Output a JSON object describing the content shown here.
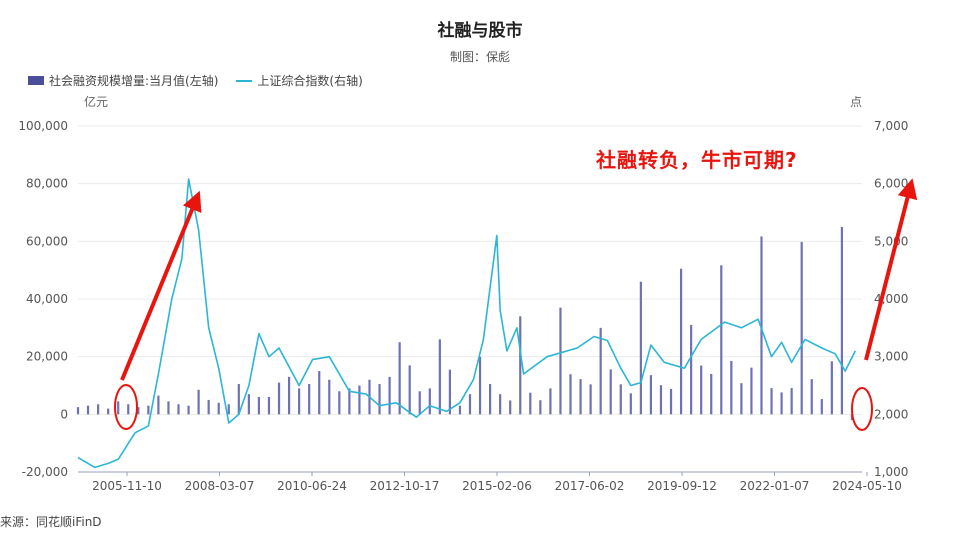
{
  "chart_data": {
    "type": "bar+line",
    "title": "社融与股市",
    "subtitle": "制图：保彪",
    "legend": [
      {
        "name": "社会融资规模增量:当月值(左轴)",
        "kind": "bar",
        "color": "#4B4F9A"
      },
      {
        "name": "上证综合指数(右轴)",
        "kind": "line",
        "color": "#2BB6D6"
      }
    ],
    "legend_position": "top-left",
    "grid": true,
    "y_left": {
      "unit": "亿元",
      "ticks": [
        "100,000",
        "80,000",
        "60,000",
        "40,000",
        "20,000",
        "0",
        "-20,000"
      ],
      "range": [
        -20000,
        100000
      ]
    },
    "y_right": {
      "unit": "点",
      "ticks": [
        "7,000",
        "6,000",
        "5,000",
        "4,000",
        "3,000",
        "2,000",
        "1,000"
      ],
      "range": [
        1000,
        7000
      ]
    },
    "x_tick_labels": [
      "2005-11-10",
      "2008-03-07",
      "2010-06-24",
      "2012-10-17",
      "2015-02-06",
      "2017-06-02",
      "2019-09-12",
      "2022-01-07",
      "2024-05-10"
    ],
    "x_range": [
      "2005-01",
      "2024-06"
    ],
    "bars": {
      "name": "社会融资规模增量:当月值(左轴)",
      "x": [
        "2005-01",
        "2005-04",
        "2005-07",
        "2005-10",
        "2006-01",
        "2006-04",
        "2006-07",
        "2006-10",
        "2007-01",
        "2007-04",
        "2007-07",
        "2007-10",
        "2008-01",
        "2008-04",
        "2008-07",
        "2008-10",
        "2009-01",
        "2009-04",
        "2009-07",
        "2009-10",
        "2010-01",
        "2010-04",
        "2010-07",
        "2010-10",
        "2011-01",
        "2011-04",
        "2011-07",
        "2011-10",
        "2012-01",
        "2012-04",
        "2012-07",
        "2012-10",
        "2013-01",
        "2013-04",
        "2013-07",
        "2013-10",
        "2014-01",
        "2014-04",
        "2014-07",
        "2014-10",
        "2015-01",
        "2015-04",
        "2015-07",
        "2015-10",
        "2016-01",
        "2016-04",
        "2016-07",
        "2016-10",
        "2017-01",
        "2017-04",
        "2017-07",
        "2017-10",
        "2018-01",
        "2018-04",
        "2018-07",
        "2018-10",
        "2019-01",
        "2019-04",
        "2019-07",
        "2019-10",
        "2020-01",
        "2020-04",
        "2020-07",
        "2020-10",
        "2021-01",
        "2021-04",
        "2021-07",
        "2021-10",
        "2022-01",
        "2022-04",
        "2022-07",
        "2022-10",
        "2023-01",
        "2023-04",
        "2023-07",
        "2023-10",
        "2024-01",
        "2024-04"
      ],
      "values": [
        2500,
        3000,
        3500,
        2000,
        4500,
        3500,
        2500,
        3000,
        6500,
        4500,
        3500,
        3000,
        8500,
        5000,
        4000,
        3500,
        10500,
        7000,
        6000,
        6000,
        11000,
        13000,
        9000,
        10500,
        15000,
        12000,
        8000,
        9000,
        10000,
        12000,
        10500,
        13000,
        25000,
        17000,
        8000,
        9000,
        26000,
        15500,
        3000,
        7000,
        20000,
        10500,
        7000,
        4800,
        34000,
        7500,
        4900,
        9000,
        37000,
        13900,
        12200,
        10400,
        30000,
        15600,
        10400,
        7300,
        46000,
        13600,
        10100,
        8800,
        50500,
        31000,
        16900,
        14000,
        51700,
        18500,
        10800,
        16200,
        61700,
        9100,
        7600,
        9100,
        59800,
        12200,
        5300,
        18400,
        65000,
        -2000
      ]
    },
    "line": {
      "name": "上证综合指数(右轴)",
      "x": [
        "2005-01",
        "2005-06",
        "2005-10",
        "2006-01",
        "2006-06",
        "2006-10",
        "2007-01",
        "2007-05",
        "2007-08",
        "2007-10",
        "2008-01",
        "2008-04",
        "2008-07",
        "2008-10",
        "2009-01",
        "2009-04",
        "2009-07",
        "2009-10",
        "2010-01",
        "2010-07",
        "2010-11",
        "2011-04",
        "2011-10",
        "2012-03",
        "2012-07",
        "2012-12",
        "2013-06",
        "2013-10",
        "2014-03",
        "2014-07",
        "2014-11",
        "2015-02",
        "2015-04",
        "2015-06",
        "2015-07",
        "2015-09",
        "2015-12",
        "2016-02",
        "2016-09",
        "2017-06",
        "2017-11",
        "2018-03",
        "2018-07",
        "2018-10",
        "2019-01",
        "2019-04",
        "2019-08",
        "2020-02",
        "2020-07",
        "2021-02",
        "2021-07",
        "2021-12",
        "2022-04",
        "2022-07",
        "2022-10",
        "2023-02",
        "2023-07",
        "2023-11",
        "2024-02",
        "2024-05"
      ],
      "values": [
        1250,
        1080,
        1150,
        1220,
        1680,
        1800,
        2700,
        4000,
        4700,
        6080,
        5200,
        3500,
        2800,
        1850,
        2000,
        2500,
        3400,
        3000,
        3150,
        2500,
        2950,
        3000,
        2400,
        2350,
        2150,
        2200,
        1950,
        2150,
        2050,
        2200,
        2600,
        3300,
        4200,
        5100,
        3800,
        3100,
        3500,
        2700,
        3000,
        3150,
        3350,
        3280,
        2800,
        2500,
        2550,
        3200,
        2900,
        2800,
        3300,
        3600,
        3500,
        3650,
        3000,
        3250,
        2900,
        3300,
        3150,
        3050,
        2750,
        3100
      ]
    },
    "annotations": [
      {
        "text": "社融转负，牛市可期?",
        "color": "#E8150E"
      }
    ],
    "source": "来源：同花顺iFinD"
  },
  "ui": {
    "title": "社融与股市",
    "subtitle": "制图：保彪",
    "legend_bar": "社会融资规模增量:当月值(左轴)",
    "legend_line": "上证综合指数(右轴)",
    "unit_left": "亿元",
    "unit_right": "点",
    "annotation": "社融转负，牛市可期?",
    "source": "来源：同花顺iFinD"
  }
}
